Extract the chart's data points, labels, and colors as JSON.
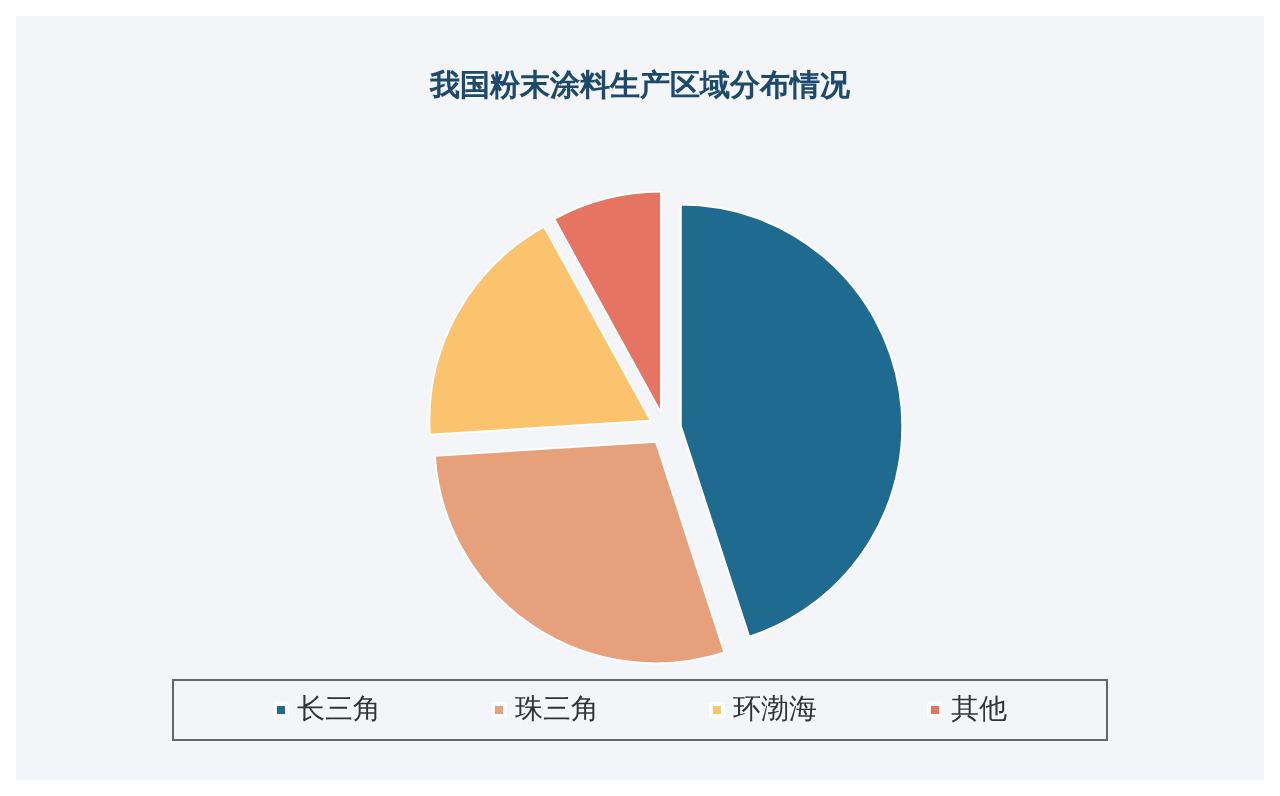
{
  "chart_data": {
    "type": "pie",
    "title": "我国粉末涂料生产区域分布情况",
    "categories": [
      "长三角",
      "珠三角",
      "环渤海",
      "其他"
    ],
    "values": [
      45,
      29,
      18,
      8
    ],
    "colors": [
      "#1f6a8f",
      "#e6a07c",
      "#fbc36e",
      "#e57562"
    ],
    "legend": "bottom"
  }
}
